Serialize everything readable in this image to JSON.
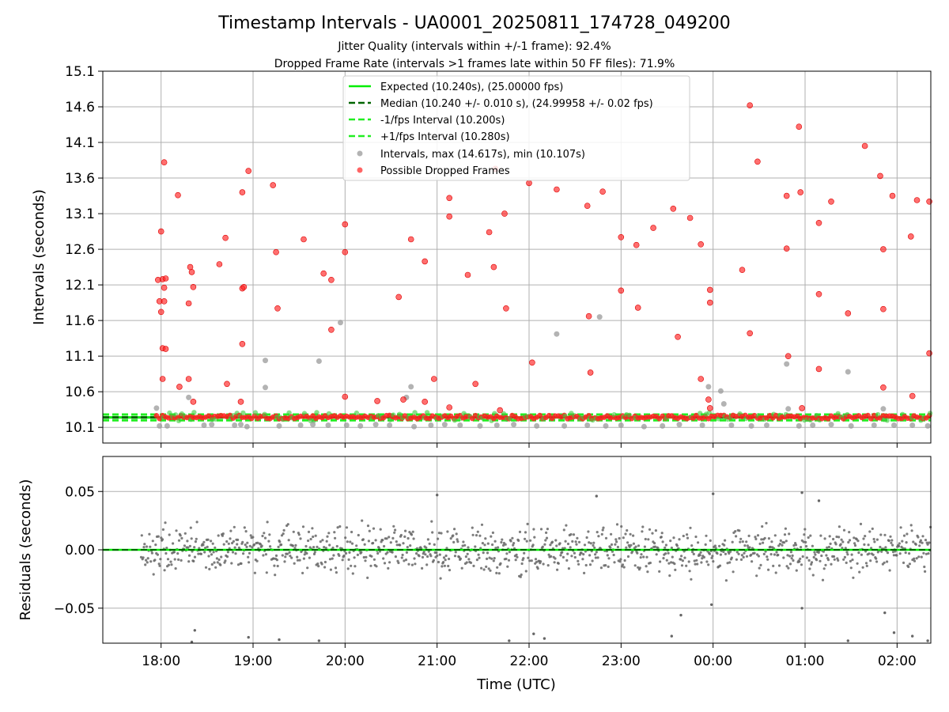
{
  "title": "Timestamp Intervals - UA0001_20250811_174728_049200",
  "subtitle_1": "Jitter Quality (intervals within +/-1 frame): 92.4%",
  "subtitle_2": "Dropped Frame Rate (intervals >1 frames late within 50 FF files): 71.9%",
  "colors": {
    "expected": "#00ee00",
    "median": "#006400",
    "bounds": "#22ee22",
    "intervals": "#999999",
    "dropped": "#ff2222",
    "residuals": "#666666",
    "grid": "#b0b0b0"
  },
  "chart_data": [
    {
      "type": "scatter",
      "panel": "top",
      "ylabel": "Intervals (seconds)",
      "xlabel": "",
      "grid": true,
      "legend_position": "top-center",
      "ylim": [
        9.88,
        15.1
      ],
      "xlim": [
        "17:22",
        "02:22"
      ],
      "y_ticks": [
        "10.1",
        "10.6",
        "11.1",
        "11.6",
        "12.1",
        "12.6",
        "13.1",
        "13.6",
        "14.1",
        "14.6",
        "15.1"
      ],
      "x_ticks": [
        "18:00",
        "19:00",
        "20:00",
        "21:00",
        "22:00",
        "23:00",
        "00:00",
        "01:00",
        "02:00"
      ],
      "lines": [
        {
          "name": "Expected (10.240s), (25.00000 fps)",
          "y": 10.24,
          "style": "solid"
        },
        {
          "name": "Median (10.240 +/- 0.010 s), (24.99958 +/- 0.02 fps)",
          "y": 10.24,
          "style": "dashed"
        },
        {
          "name": "-1/fps Interval (10.200s)",
          "y": 10.2,
          "style": "dashed"
        },
        {
          "name": "+1/fps Interval (10.280s)",
          "y": 10.28,
          "style": "dashed"
        }
      ],
      "series": [
        {
          "name": "Intervals, max (14.617s), min (10.107s)",
          "points": [
            [
              "17:57",
              10.37
            ],
            [
              "17:59",
              10.12
            ],
            [
              "18:04",
              10.12
            ],
            [
              "18:18",
              10.52
            ],
            [
              "18:28",
              10.13
            ],
            [
              "18:33",
              10.14
            ],
            [
              "18:48",
              10.13
            ],
            [
              "18:52",
              10.14
            ],
            [
              "18:56",
              10.11
            ],
            [
              "19:08",
              11.04
            ],
            [
              "19:08",
              10.66
            ],
            [
              "19:17",
              10.12
            ],
            [
              "19:31",
              10.13
            ],
            [
              "19:39",
              10.14
            ],
            [
              "19:43",
              11.03
            ],
            [
              "19:49",
              10.13
            ],
            [
              "19:57",
              11.57
            ],
            [
              "20:01",
              10.13
            ],
            [
              "20:10",
              10.12
            ],
            [
              "20:20",
              10.14
            ],
            [
              "20:29",
              10.13
            ],
            [
              "20:40",
              10.52
            ],
            [
              "20:43",
              10.67
            ],
            [
              "20:45",
              10.11
            ],
            [
              "20:56",
              10.13
            ],
            [
              "21:05",
              10.14
            ],
            [
              "21:15",
              10.13
            ],
            [
              "21:28",
              10.12
            ],
            [
              "21:39",
              10.13
            ],
            [
              "21:50",
              10.14
            ],
            [
              "22:05",
              10.12
            ],
            [
              "22:18",
              11.41
            ],
            [
              "22:23",
              10.12
            ],
            [
              "22:38",
              10.13
            ],
            [
              "22:46",
              11.65
            ],
            [
              "22:50",
              10.12
            ],
            [
              "23:00",
              10.13
            ],
            [
              "23:15",
              10.11
            ],
            [
              "23:27",
              10.12
            ],
            [
              "23:38",
              10.14
            ],
            [
              "23:53",
              10.13
            ],
            [
              "23:57",
              10.67
            ],
            [
              "00:05",
              10.61
            ],
            [
              "00:07",
              10.43
            ],
            [
              "00:12",
              10.13
            ],
            [
              "00:25",
              10.12
            ],
            [
              "00:35",
              10.13
            ],
            [
              "00:48",
              10.99
            ],
            [
              "00:49",
              10.36
            ],
            [
              "00:56",
              10.12
            ],
            [
              "01:05",
              10.13
            ],
            [
              "01:17",
              10.14
            ],
            [
              "01:28",
              10.88
            ],
            [
              "01:30",
              10.12
            ],
            [
              "01:45",
              10.13
            ],
            [
              "01:51",
              10.36
            ],
            [
              "01:58",
              10.13
            ],
            [
              "02:10",
              10.13
            ],
            [
              "02:20",
              10.12
            ]
          ]
        },
        {
          "name": "Possible Dropped Frames",
          "points": [
            [
              "17:58",
              12.17
            ],
            [
              "17:59",
              11.87
            ],
            [
              "18:00",
              12.85
            ],
            [
              "18:00",
              11.72
            ],
            [
              "18:01",
              12.18
            ],
            [
              "18:01",
              11.21
            ],
            [
              "18:01",
              10.78
            ],
            [
              "18:02",
              12.06
            ],
            [
              "18:02",
              11.87
            ],
            [
              "18:02",
              13.82
            ],
            [
              "18:03",
              12.19
            ],
            [
              "18:03",
              11.2
            ],
            [
              "18:11",
              13.36
            ],
            [
              "18:12",
              10.67
            ],
            [
              "18:18",
              10.78
            ],
            [
              "18:18",
              11.84
            ],
            [
              "18:19",
              12.35
            ],
            [
              "18:20",
              12.28
            ],
            [
              "18:21",
              12.07
            ],
            [
              "18:21",
              10.46
            ],
            [
              "18:38",
              12.39
            ],
            [
              "18:42",
              12.76
            ],
            [
              "18:43",
              10.71
            ],
            [
              "18:53",
              13.4
            ],
            [
              "18:53",
              12.05
            ],
            [
              "18:54",
              12.07
            ],
            [
              "18:53",
              11.27
            ],
            [
              "18:52",
              10.46
            ],
            [
              "18:57",
              13.7
            ],
            [
              "19:13",
              13.5
            ],
            [
              "19:15",
              12.56
            ],
            [
              "19:16",
              11.77
            ],
            [
              "19:33",
              12.74
            ],
            [
              "19:46",
              12.26
            ],
            [
              "19:51",
              12.17
            ],
            [
              "19:51",
              11.47
            ],
            [
              "20:00",
              12.95
            ],
            [
              "20:00",
              12.56
            ],
            [
              "20:00",
              10.53
            ],
            [
              "20:21",
              10.47
            ],
            [
              "20:35",
              11.93
            ],
            [
              "20:38",
              10.49
            ],
            [
              "20:43",
              12.74
            ],
            [
              "20:52",
              12.43
            ],
            [
              "20:52",
              10.46
            ],
            [
              "20:58",
              10.78
            ],
            [
              "21:08",
              13.06
            ],
            [
              "21:08",
              13.32
            ],
            [
              "21:08",
              10.38
            ],
            [
              "21:20",
              12.24
            ],
            [
              "21:25",
              10.71
            ],
            [
              "21:34",
              12.84
            ],
            [
              "21:37",
              12.35
            ],
            [
              "21:38",
              13.73
            ],
            [
              "21:44",
              13.1
            ],
            [
              "21:45",
              11.77
            ],
            [
              "21:41",
              10.34
            ],
            [
              "22:00",
              13.53
            ],
            [
              "22:02",
              11.01
            ],
            [
              "22:18",
              13.44
            ],
            [
              "22:38",
              13.21
            ],
            [
              "22:39",
              11.66
            ],
            [
              "22:40",
              10.87
            ],
            [
              "22:48",
              13.41
            ],
            [
              "23:00",
              12.02
            ],
            [
              "23:00",
              12.77
            ],
            [
              "23:10",
              12.66
            ],
            [
              "23:11",
              11.78
            ],
            [
              "23:21",
              12.9
            ],
            [
              "23:34",
              13.17
            ],
            [
              "23:37",
              11.37
            ],
            [
              "23:45",
              13.04
            ],
            [
              "23:52",
              12.67
            ],
            [
              "23:52",
              10.78
            ],
            [
              "23:58",
              10.37
            ],
            [
              "23:57",
              10.49
            ],
            [
              "23:58",
              12.03
            ],
            [
              "23:58",
              11.85
            ],
            [
              "00:19",
              12.31
            ],
            [
              "00:24",
              11.42
            ],
            [
              "00:24",
              14.62
            ],
            [
              "00:29",
              13.83
            ],
            [
              "00:48",
              13.35
            ],
            [
              "00:48",
              12.61
            ],
            [
              "00:49",
              11.1
            ],
            [
              "00:57",
              13.4
            ],
            [
              "00:56",
              14.32
            ],
            [
              "00:58",
              10.37
            ],
            [
              "01:09",
              12.97
            ],
            [
              "01:09",
              11.97
            ],
            [
              "01:09",
              10.92
            ],
            [
              "01:17",
              13.27
            ],
            [
              "01:28",
              11.7
            ],
            [
              "01:39",
              14.05
            ],
            [
              "01:49",
              13.63
            ],
            [
              "01:51",
              12.6
            ],
            [
              "01:51",
              11.76
            ],
            [
              "01:51",
              10.66
            ],
            [
              "01:57",
              13.35
            ],
            [
              "02:09",
              12.78
            ],
            [
              "02:10",
              10.54
            ],
            [
              "02:13",
              13.29
            ],
            [
              "02:21",
              13.27
            ],
            [
              "02:21",
              11.14
            ]
          ]
        }
      ]
    },
    {
      "type": "scatter",
      "panel": "bottom",
      "ylabel": "Residuals (seconds)",
      "xlabel": "Time (UTC)",
      "grid": true,
      "ylim": [
        -0.08,
        0.08
      ],
      "y_ticks": [
        "0.05",
        "0.00",
        "−0.05"
      ],
      "x_ticks": [
        "18:00",
        "19:00",
        "20:00",
        "21:00",
        "22:00",
        "23:00",
        "00:00",
        "01:00",
        "02:00"
      ],
      "series": [
        {
          "name": "Residuals",
          "points": [
            [
              "18:22",
              -0.069
            ],
            [
              "18:20",
              -0.079
            ],
            [
              "18:57",
              -0.075
            ],
            [
              "19:17",
              -0.077
            ],
            [
              "19:43",
              -0.078
            ],
            [
              "21:00",
              0.047
            ],
            [
              "21:47",
              -0.078
            ],
            [
              "22:03",
              -0.072
            ],
            [
              "22:10",
              -0.076
            ],
            [
              "22:44",
              0.046
            ],
            [
              "23:33",
              -0.074
            ],
            [
              "23:39",
              -0.056
            ],
            [
              "23:59",
              -0.047
            ],
            [
              "00:00",
              0.048
            ],
            [
              "00:58",
              0.049
            ],
            [
              "00:58",
              -0.05
            ],
            [
              "01:09",
              0.042
            ],
            [
              "01:28",
              -0.078
            ],
            [
              "01:52",
              -0.054
            ],
            [
              "01:58",
              -0.071
            ],
            [
              "02:10",
              -0.074
            ],
            [
              "02:20",
              -0.078
            ]
          ]
        }
      ],
      "lines": [
        {
          "name": "Median",
          "y": 0.0,
          "style": "dashed"
        }
      ]
    }
  ]
}
